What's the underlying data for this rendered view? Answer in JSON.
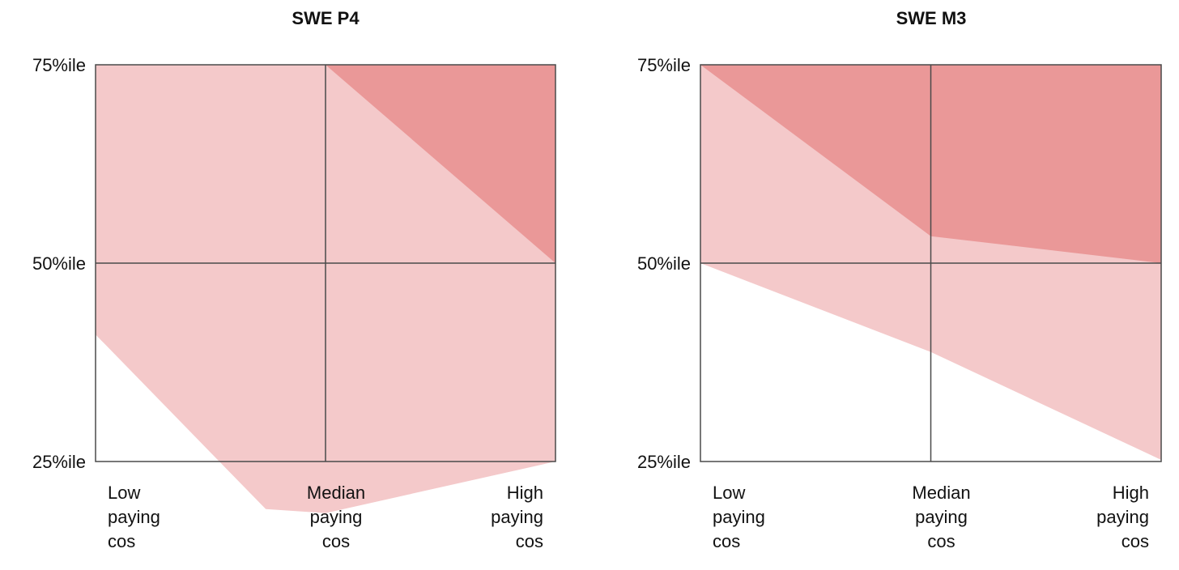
{
  "chart_data": [
    {
      "type": "area",
      "title": "SWE P4",
      "categories": [
        "Low paying cos",
        "Median paying cos",
        "High paying cos"
      ],
      "xtick_lines": [
        [
          "Low",
          "paying",
          "cos"
        ],
        [
          "Median",
          "paying",
          "cos"
        ],
        [
          "High",
          "paying",
          "cos"
        ]
      ],
      "yticks": [
        {
          "value": 25,
          "label": "25%ile"
        },
        {
          "value": 50,
          "label": "50%ile"
        },
        {
          "value": 75,
          "label": "75%ile"
        }
      ],
      "ylim": [
        25,
        75
      ],
      "grid": true,
      "light_band": {
        "color": "#f4c9ca",
        "upper": [
          [
            0,
            75
          ],
          [
            1,
            75
          ],
          [
            2,
            75
          ]
        ],
        "lower": [
          [
            0,
            41
          ],
          [
            0.74,
            19
          ],
          [
            1,
            18.5
          ],
          [
            2,
            25
          ]
        ]
      },
      "dark_band": {
        "color": "#ea9898",
        "upper": [
          [
            1,
            75
          ],
          [
            2,
            75
          ]
        ],
        "lower": [
          [
            1,
            75
          ],
          [
            2,
            50
          ]
        ]
      }
    },
    {
      "type": "area",
      "title": "SWE M3",
      "categories": [
        "Low paying cos",
        "Median paying cos",
        "High paying cos"
      ],
      "xtick_lines": [
        [
          "Low",
          "paying",
          "cos"
        ],
        [
          "Median",
          "paying",
          "cos"
        ],
        [
          "High",
          "paying",
          "cos"
        ]
      ],
      "yticks": [
        {
          "value": 25,
          "label": "25%ile"
        },
        {
          "value": 50,
          "label": "50%ile"
        },
        {
          "value": 75,
          "label": "75%ile"
        }
      ],
      "ylim": [
        25,
        75
      ],
      "grid": true,
      "light_band": {
        "color": "#f4c9ca",
        "upper": [
          [
            0,
            75
          ],
          [
            1,
            75
          ],
          [
            2,
            75
          ]
        ],
        "lower": [
          [
            0,
            50
          ],
          [
            1,
            38.8
          ],
          [
            2,
            25.2
          ]
        ]
      },
      "dark_band": {
        "color": "#ea9898",
        "upper": [
          [
            0,
            75
          ],
          [
            1,
            75
          ],
          [
            2,
            75
          ]
        ],
        "lower": [
          [
            0,
            75
          ],
          [
            1,
            53.4
          ],
          [
            2,
            50
          ]
        ]
      }
    }
  ]
}
